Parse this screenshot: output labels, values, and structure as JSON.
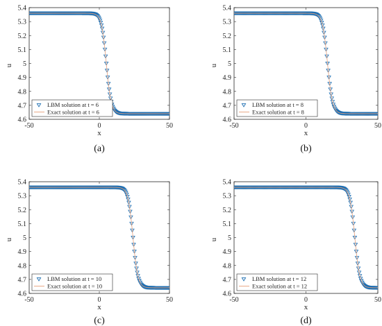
{
  "chart_data": [
    {
      "panel_id": "a",
      "type": "line",
      "caption": "(a)",
      "xlabel": "x",
      "ylabel": "u",
      "xlim": [
        -50,
        50
      ],
      "ylim": [
        4.6,
        5.4
      ],
      "xticks": [
        "-50",
        "0",
        "50"
      ],
      "yticks": [
        "4.6",
        "4.7",
        "4.8",
        "4.9",
        "5",
        "5.1",
        "5.2",
        "5.3",
        "5.4"
      ],
      "grid": false,
      "legend_position": "bottom-left",
      "series": [
        {
          "name": "LBM solution at t = 6",
          "marker": "triangle-down",
          "color": "#1f6fb2",
          "profile": {
            "u_left": 5.36,
            "u_right": 4.64,
            "center": 5.0,
            "width": 3.5,
            "x_step": 0.5
          }
        },
        {
          "name": "Exact solution at t = 6",
          "marker": "line",
          "color": "#e8a07a",
          "profile": {
            "u_left": 5.36,
            "u_right": 4.64,
            "center": 5.0,
            "width": 3.5,
            "x_step": 0.5
          }
        }
      ]
    },
    {
      "panel_id": "b",
      "type": "line",
      "caption": "(b)",
      "xlabel": "x",
      "ylabel": "u",
      "xlim": [
        -50,
        50
      ],
      "ylim": [
        4.6,
        5.4
      ],
      "xticks": [
        "-50",
        "0",
        "50"
      ],
      "yticks": [
        "4.6",
        "4.7",
        "4.8",
        "4.9",
        "5",
        "5.1",
        "5.2",
        "5.3",
        "5.4"
      ],
      "grid": false,
      "legend_position": "bottom-left",
      "series": [
        {
          "name": "LBM solution at t = 8",
          "marker": "triangle-down",
          "color": "#1f6fb2",
          "profile": {
            "u_left": 5.36,
            "u_right": 4.64,
            "center": 15.0,
            "width": 3.5,
            "x_step": 0.5
          }
        },
        {
          "name": "Exact solution at t = 8",
          "marker": "line",
          "color": "#e8a07a",
          "profile": {
            "u_left": 5.36,
            "u_right": 4.64,
            "center": 15.0,
            "width": 3.5,
            "x_step": 0.5
          }
        }
      ]
    },
    {
      "panel_id": "c",
      "type": "line",
      "caption": "(c)",
      "xlabel": "x",
      "ylabel": "u",
      "xlim": [
        -50,
        50
      ],
      "ylim": [
        4.6,
        5.4
      ],
      "xticks": [
        "-50",
        "0",
        "50"
      ],
      "yticks": [
        "4.6",
        "4.7",
        "4.8",
        "4.9",
        "5",
        "5.1",
        "5.2",
        "5.3",
        "5.4"
      ],
      "grid": false,
      "legend_position": "bottom-left",
      "series": [
        {
          "name": "LBM solution at t = 10",
          "marker": "triangle-down",
          "color": "#1f6fb2",
          "profile": {
            "u_left": 5.36,
            "u_right": 4.64,
            "center": 24.0,
            "width": 3.5,
            "x_step": 0.5
          }
        },
        {
          "name": "Exact solution at t = 10",
          "marker": "line",
          "color": "#e8a07a",
          "profile": {
            "u_left": 5.36,
            "u_right": 4.64,
            "center": 24.0,
            "width": 3.5,
            "x_step": 0.5
          }
        }
      ]
    },
    {
      "panel_id": "d",
      "type": "line",
      "caption": "(d)",
      "xlabel": "x",
      "ylabel": "u",
      "xlim": [
        -50,
        50
      ],
      "ylim": [
        4.6,
        5.4
      ],
      "xticks": [
        "-50",
        "0",
        "50"
      ],
      "yticks": [
        "4.6",
        "4.7",
        "4.8",
        "4.9",
        "5",
        "5.1",
        "5.2",
        "5.3",
        "5.4"
      ],
      "grid": false,
      "legend_position": "bottom-left",
      "series": [
        {
          "name": "LBM solution at t = 12",
          "marker": "triangle-down",
          "color": "#1f6fb2",
          "profile": {
            "u_left": 5.36,
            "u_right": 4.64,
            "center": 34.0,
            "width": 3.5,
            "x_step": 0.5
          }
        },
        {
          "name": "Exact solution at t = 12",
          "marker": "line",
          "color": "#e8a07a",
          "profile": {
            "u_left": 5.36,
            "u_right": 4.64,
            "center": 34.0,
            "width": 3.5,
            "x_step": 0.5
          }
        }
      ]
    }
  ]
}
